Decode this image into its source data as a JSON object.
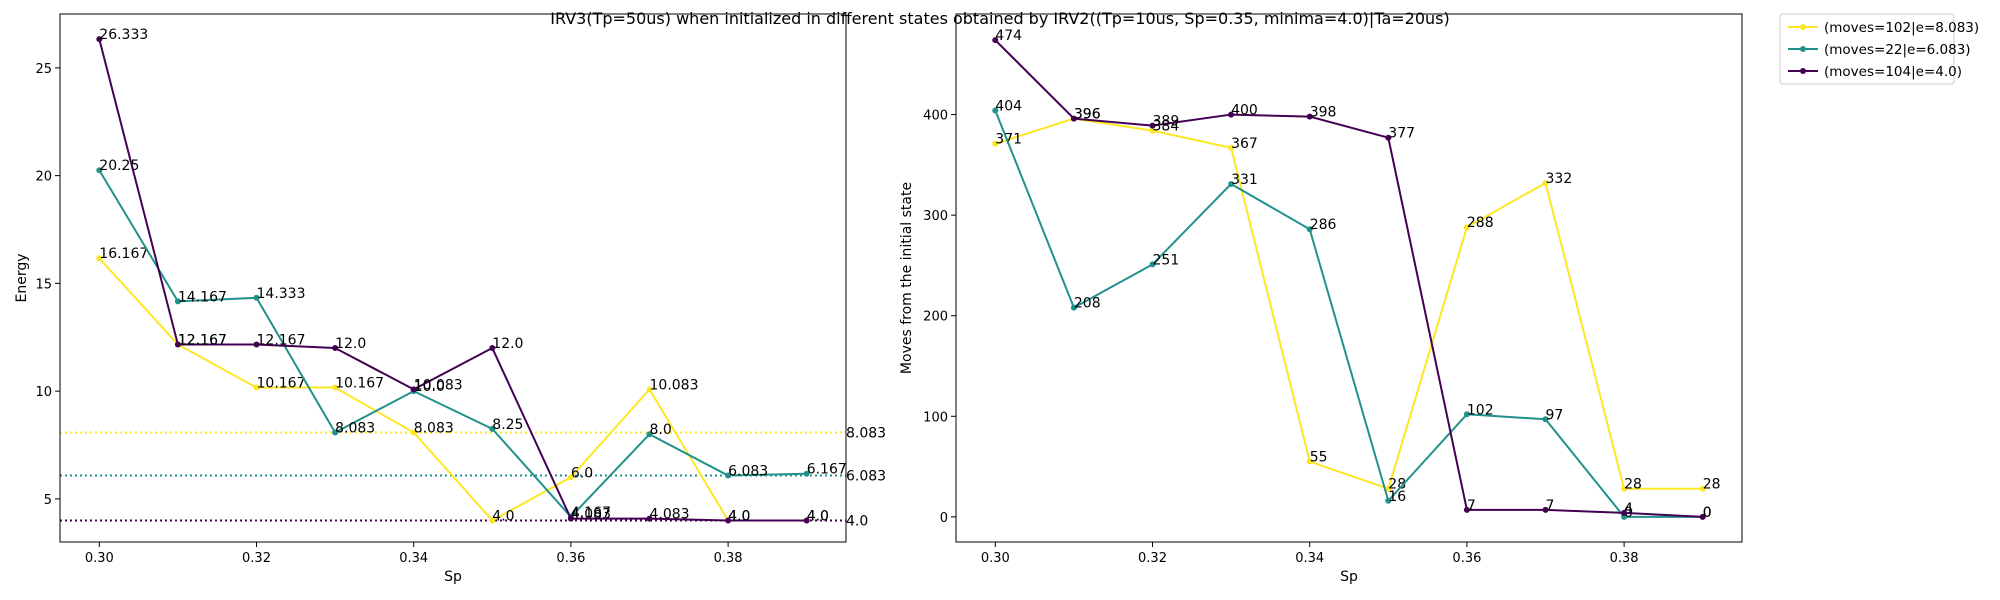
{
  "figure": {
    "title": "IRV3(Tp=50us) when initialized in different states obtained by IRV2((Tp=10us, Sp=0.35, minima=4.0)|Ta=20us)"
  },
  "colors": {
    "yellow": "#fde725",
    "teal": "#21918c",
    "purple": "#440154"
  },
  "chart_data": [
    {
      "type": "line",
      "xlabel": "Sp",
      "ylabel": "Energy",
      "xlim": [
        0.295,
        0.395
      ],
      "ylim": [
        3.0,
        27.5
      ],
      "xticks": [
        "0.30",
        "0.32",
        "0.34",
        "0.36",
        "0.38"
      ],
      "yticks": [
        "5",
        "10",
        "15",
        "20",
        "25"
      ],
      "x": [
        0.3,
        0.31,
        0.32,
        0.33,
        0.34,
        0.35,
        0.36,
        0.37,
        0.38,
        0.39
      ],
      "series": [
        {
          "name": "(moves=102|e=8.083)",
          "color": "#fde725",
          "values": [
            16.167,
            12.167,
            10.167,
            10.167,
            8.083,
            4.0,
            6.0,
            10.083,
            4.0,
            4.0
          ],
          "labels": [
            "16.167",
            "12.167",
            "10.167",
            "10.167",
            "8.083",
            "4.0",
            "6.0",
            "10.083",
            "4.0",
            "4.0"
          ]
        },
        {
          "name": "(moves=22|e=6.083)",
          "color": "#21918c",
          "values": [
            20.25,
            14.167,
            14.333,
            8.083,
            10.0,
            8.25,
            4.167,
            8.0,
            6.083,
            6.167
          ],
          "labels": [
            "20.25",
            "14.167",
            "14.333",
            "8.083",
            "10.0",
            "8.25",
            "4.167",
            "8.0",
            "6.083",
            "6.167"
          ]
        },
        {
          "name": "(moves=104|e=4.0)",
          "color": "#440154",
          "values": [
            26.333,
            12.167,
            12.167,
            12.0,
            10.083,
            12.0,
            4.083,
            4.083,
            4.0,
            4.0
          ],
          "labels": [
            "26.333",
            "12.167",
            "12.167",
            "12.0",
            "10.083",
            "12.0",
            "4.083",
            "4.083",
            "4.0",
            "4.0"
          ]
        }
      ],
      "reference_lines": [
        {
          "value": 8.083,
          "label": "8.083",
          "color": "#fde725"
        },
        {
          "value": 6.083,
          "label": "6.083",
          "color": "#21918c"
        },
        {
          "value": 4.0,
          "label": "4.0",
          "color": "#440154"
        }
      ]
    },
    {
      "type": "line",
      "xlabel": "Sp",
      "ylabel": "Moves from the initial state",
      "xlim": [
        0.295,
        0.395
      ],
      "ylim": [
        -25,
        500
      ],
      "xticks": [
        "0.30",
        "0.32",
        "0.34",
        "0.36",
        "0.38"
      ],
      "yticks": [
        "0",
        "100",
        "200",
        "300",
        "400"
      ],
      "x": [
        0.3,
        0.31,
        0.32,
        0.33,
        0.34,
        0.35,
        0.36,
        0.37,
        0.38,
        0.39
      ],
      "series": [
        {
          "name": "(moves=102|e=8.083)",
          "color": "#fde725",
          "values": [
            371,
            396,
            384,
            367,
            55,
            28,
            288,
            332,
            28,
            28
          ],
          "labels": [
            "371",
            "396",
            "384",
            "367",
            "55",
            "28",
            "288",
            "332",
            "28",
            "28"
          ]
        },
        {
          "name": "(moves=22|e=6.083)",
          "color": "#21918c",
          "values": [
            404,
            208,
            251,
            331,
            286,
            16,
            102,
            97,
            0,
            0
          ],
          "labels": [
            "404",
            "208",
            "251",
            "331",
            "286",
            "16",
            "102",
            "97",
            "0",
            "0"
          ]
        },
        {
          "name": "(moves=104|e=4.0)",
          "color": "#440154",
          "values": [
            474,
            396,
            389,
            400,
            398,
            377,
            7,
            7,
            4,
            0
          ],
          "labels": [
            "474",
            "396",
            "389",
            "400",
            "398",
            "377",
            "7",
            "7",
            "4",
            "0"
          ]
        }
      ]
    }
  ],
  "legend": {
    "placement": "outside-top-right",
    "entries": [
      {
        "label": "(moves=102|e=8.083)",
        "color": "#fde725"
      },
      {
        "label": "(moves=22|e=6.083)",
        "color": "#21918c"
      },
      {
        "label": "(moves=104|e=4.0)",
        "color": "#440154"
      }
    ]
  }
}
